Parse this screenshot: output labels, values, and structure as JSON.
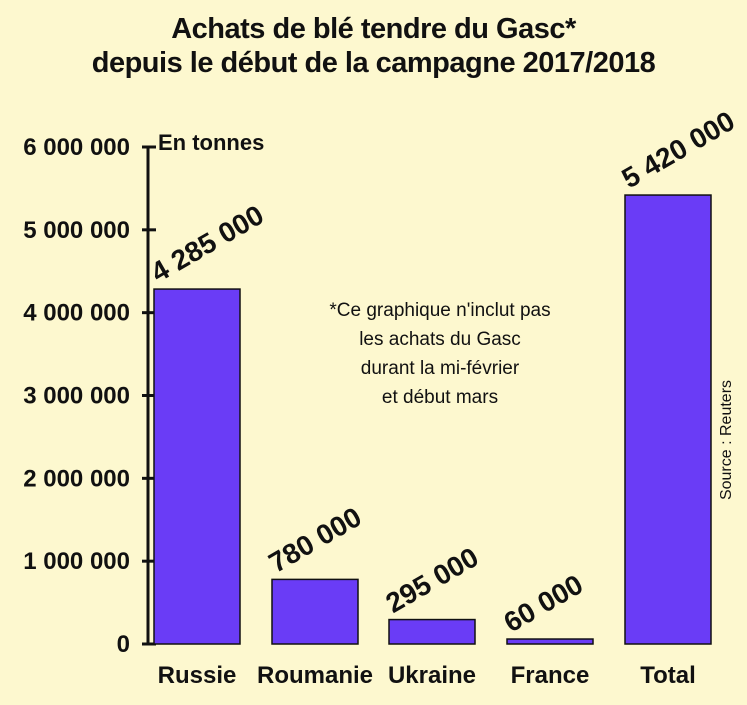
{
  "chart_data": {
    "type": "bar",
    "title_line1": "Achats de blé tendre du Gasc*",
    "title_line2": "depuis le début de la campagne 2017/2018",
    "ylabel": "En tonnes",
    "xlabel": "",
    "categories": [
      "Russie",
      "Roumanie",
      "Ukraine",
      "France",
      "Total"
    ],
    "values": [
      4285000,
      780000,
      295000,
      60000,
      5420000
    ],
    "value_labels": [
      "4 285 000",
      "780 000",
      "295 000",
      "60 000",
      "5 420 000"
    ],
    "ylim": [
      0,
      6000000
    ],
    "yticks": [
      0,
      1000000,
      2000000,
      3000000,
      4000000,
      5000000,
      6000000
    ],
    "ytick_labels": [
      "0",
      "1 000 000",
      "2 000 000",
      "3 000 000",
      "4 000 000",
      "5 000 000",
      "6 000 000"
    ],
    "bar_color": "#6a3cf6",
    "grid": false,
    "legend": "none",
    "note": [
      "*Ce graphique n'inclut pas",
      "les achats du Gasc",
      "durant la mi-février",
      "et début mars"
    ],
    "source": "Source : Reuters"
  }
}
